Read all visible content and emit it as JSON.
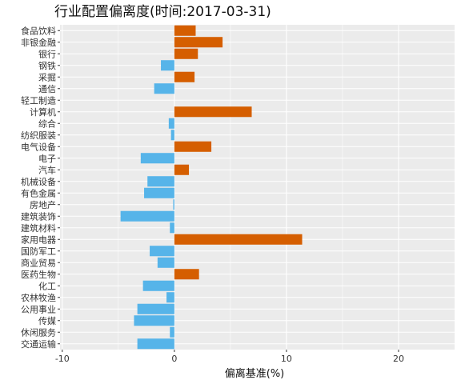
{
  "chart_data": {
    "type": "bar",
    "orientation": "horizontal",
    "title": "行业配置偏离度(时间:2017-03-31)",
    "xlabel": "偏离基准(%)",
    "ylabel": "",
    "xlim": [
      -10.2,
      25.0
    ],
    "xticks": [
      -10,
      0,
      10,
      20
    ],
    "grid": true,
    "legend": "none",
    "colors": {
      "positive": "#D55E00",
      "negative": "#56B4E9",
      "panel": "#EBEBEB",
      "grid": "#FFFFFF"
    },
    "categories": [
      "食品饮料",
      "非银金融",
      "银行",
      "钢铁",
      "采掘",
      "通信",
      "轻工制造",
      "计算机",
      "综合",
      "纺织服装",
      "电气设备",
      "电子",
      "汽车",
      "机械设备",
      "有色金属",
      "房地产",
      "建筑装饰",
      "建筑材料",
      "家用电器",
      "国防军工",
      "商业贸易",
      "医药生物",
      "化工",
      "农林牧渔",
      "公用事业",
      "传媒",
      "休闲服务",
      "交通运输"
    ],
    "values": [
      1.9,
      4.3,
      2.1,
      -1.2,
      1.8,
      -1.8,
      0.0,
      6.9,
      -0.5,
      -0.3,
      3.3,
      -3.0,
      1.3,
      -2.4,
      -2.7,
      -0.1,
      -4.8,
      -0.4,
      11.4,
      -2.2,
      -1.5,
      2.2,
      -2.8,
      -0.7,
      -3.3,
      -3.6,
      -0.4,
      -3.3
    ]
  }
}
